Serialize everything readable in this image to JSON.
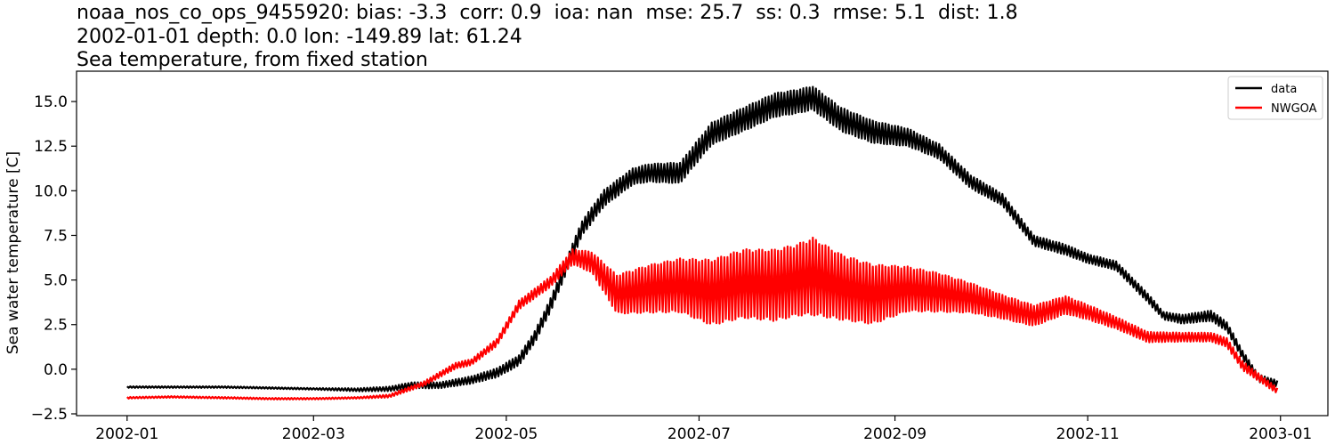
{
  "titles": {
    "line1": "noaa_nos_co_ops_9455920: bias: -3.3  corr: 0.9  ioa: nan  mse: 25.7  ss: 0.3  rmse: 5.1  dist: 1.8",
    "line2": "2002-01-01 depth: 0.0 lon: -149.89 lat: 61.24",
    "line3": "Sea temperature, from fixed station"
  },
  "chart_data": {
    "type": "line",
    "title": "Sea temperature, from fixed station",
    "xlabel": "",
    "ylabel": "Sea water temperature [C]",
    "xlim": [
      "2001-12-16",
      "2003-01-16"
    ],
    "ylim": [
      -2.6,
      16.7
    ],
    "xticks": [
      "2002-01",
      "2002-03",
      "2002-05",
      "2002-07",
      "2002-09",
      "2002-11",
      "2003-01"
    ],
    "yticks": [
      -2.5,
      0.0,
      2.5,
      5.0,
      7.5,
      10.0,
      12.5,
      15.0
    ],
    "yticklabels": [
      "−2.5",
      "0.0",
      "2.5",
      "5.0",
      "7.5",
      "10.0",
      "12.5",
      "15.0"
    ],
    "grid": false,
    "legend": "top-right",
    "series": [
      {
        "name": "data",
        "color": "#000000",
        "x": [
          "2002-01-01",
          "2002-01-15",
          "2002-02-01",
          "2002-02-15",
          "2002-03-01",
          "2002-03-15",
          "2002-03-25",
          "2002-04-01",
          "2002-04-10",
          "2002-04-20",
          "2002-04-28",
          "2002-05-05",
          "2002-05-10",
          "2002-05-15",
          "2002-05-20",
          "2002-05-25",
          "2002-06-01",
          "2002-06-10",
          "2002-06-15",
          "2002-06-25",
          "2002-07-05",
          "2002-07-15",
          "2002-07-25",
          "2002-08-01",
          "2002-08-06",
          "2002-08-15",
          "2002-08-25",
          "2002-09-05",
          "2002-09-15",
          "2002-09-25",
          "2002-10-05",
          "2002-10-15",
          "2002-10-25",
          "2002-11-01",
          "2002-11-10",
          "2002-11-20",
          "2002-11-25",
          "2002-12-01",
          "2002-12-10",
          "2002-12-15",
          "2002-12-20",
          "2002-12-25",
          "2002-12-31"
        ],
        "y": [
          -1.0,
          -1.0,
          -1.0,
          -1.05,
          -1.1,
          -1.15,
          -1.1,
          -0.9,
          -0.9,
          -0.6,
          -0.2,
          0.5,
          1.8,
          3.6,
          5.8,
          7.9,
          9.6,
          10.8,
          11.0,
          11.0,
          13.2,
          14.0,
          14.8,
          15.0,
          15.2,
          14.0,
          13.3,
          13.0,
          12.2,
          10.5,
          9.5,
          7.2,
          6.7,
          6.2,
          5.8,
          4.0,
          3.0,
          2.8,
          3.0,
          2.4,
          0.8,
          -0.5,
          -0.8
        ],
        "band": [
          0.05,
          0.05,
          0.05,
          0.05,
          0.05,
          0.1,
          0.15,
          0.2,
          0.2,
          0.25,
          0.3,
          0.35,
          0.4,
          0.45,
          0.5,
          0.5,
          0.55,
          0.55,
          0.6,
          0.7,
          0.75,
          0.8,
          0.8,
          0.8,
          0.8,
          0.8,
          0.75,
          0.6,
          0.5,
          0.45,
          0.4,
          0.35,
          0.35,
          0.3,
          0.3,
          0.3,
          0.25,
          0.3,
          0.35,
          0.3,
          0.3,
          0.25,
          0.2
        ]
      },
      {
        "name": "NWGOA",
        "color": "#ff0000",
        "x": [
          "2002-01-01",
          "2002-01-15",
          "2002-02-01",
          "2002-02-15",
          "2002-03-01",
          "2002-03-15",
          "2002-03-25",
          "2002-04-05",
          "2002-04-15",
          "2002-04-20",
          "2002-04-28",
          "2002-05-05",
          "2002-05-15",
          "2002-05-22",
          "2002-05-28",
          "2002-06-05",
          "2002-06-15",
          "2002-06-25",
          "2002-07-05",
          "2002-07-15",
          "2002-07-25",
          "2002-08-01",
          "2002-08-06",
          "2002-08-15",
          "2002-08-25",
          "2002-09-05",
          "2002-09-15",
          "2002-09-25",
          "2002-10-05",
          "2002-10-15",
          "2002-10-25",
          "2002-11-01",
          "2002-11-10",
          "2002-11-20",
          "2002-12-01",
          "2002-12-10",
          "2002-12-15",
          "2002-12-20",
          "2002-12-31"
        ],
        "y": [
          -1.6,
          -1.55,
          -1.6,
          -1.65,
          -1.65,
          -1.6,
          -1.5,
          -0.8,
          0.2,
          0.4,
          1.5,
          3.6,
          4.9,
          6.3,
          6.0,
          4.2,
          4.5,
          4.7,
          4.3,
          4.8,
          4.7,
          5.0,
          5.2,
          4.6,
          4.2,
          4.5,
          4.3,
          4.0,
          3.5,
          3.0,
          3.6,
          3.2,
          2.6,
          1.8,
          1.8,
          1.8,
          1.5,
          0.2,
          -1.2
        ],
        "band": [
          0.05,
          0.05,
          0.05,
          0.05,
          0.05,
          0.05,
          0.1,
          0.15,
          0.2,
          0.2,
          0.25,
          0.3,
          0.35,
          0.5,
          0.7,
          1.3,
          1.6,
          1.8,
          2.2,
          2.3,
          2.4,
          2.4,
          2.6,
          2.2,
          2.0,
          1.5,
          1.3,
          1.0,
          0.8,
          0.7,
          0.6,
          0.5,
          0.4,
          0.35,
          0.3,
          0.3,
          0.3,
          0.3,
          0.2
        ]
      }
    ]
  }
}
